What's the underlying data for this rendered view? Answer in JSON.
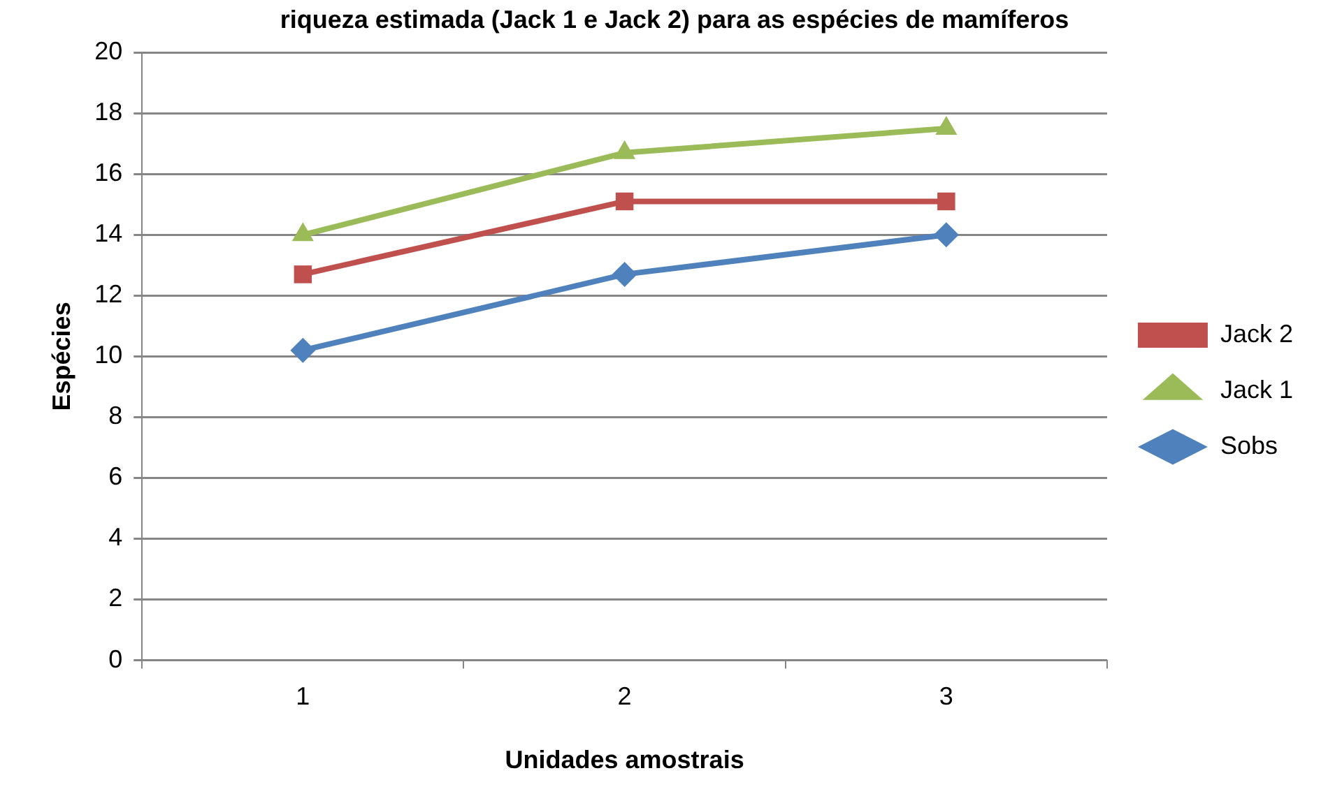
{
  "chart_data": {
    "type": "line",
    "title": "riqueza estimada (Jack 1 e Jack 2) para as espécies de mamíferos",
    "xlabel": "Unidades amostrais",
    "ylabel": "Espécies",
    "categories": [
      "1",
      "2",
      "3"
    ],
    "series": [
      {
        "name": "Jack 2",
        "color": "#c0504d",
        "marker": "square",
        "values": [
          12.7,
          15.1,
          15.1
        ]
      },
      {
        "name": "Jack 1",
        "color": "#9bbb59",
        "marker": "triangle",
        "values": [
          14,
          16.7,
          17.5
        ]
      },
      {
        "name": "Sobs",
        "color": "#4f81bd",
        "marker": "diamond",
        "values": [
          10.2,
          12.7,
          14
        ]
      }
    ],
    "ylim": [
      0,
      20
    ],
    "yticks": [
      0,
      2,
      4,
      6,
      8,
      10,
      12,
      14,
      16,
      18,
      20
    ],
    "grid": "y",
    "legend": "right",
    "line_style": "solid"
  }
}
